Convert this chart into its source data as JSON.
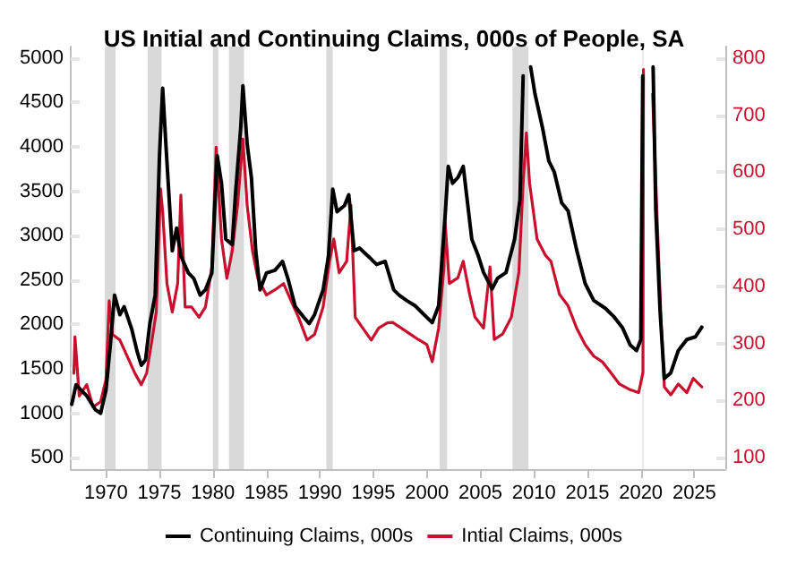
{
  "chart_data": {
    "type": "line",
    "title": "US Initial and Continuing Claims, 000s of People, SA",
    "xlim": [
      1966.7,
      2027.9
    ],
    "xticks": [
      1970,
      1975,
      1980,
      1985,
      1990,
      1995,
      2000,
      2005,
      2010,
      2015,
      2020,
      2025
    ],
    "ylim": [
      370,
      5130
    ],
    "yticks": [
      500,
      1000,
      1500,
      2000,
      2500,
      3000,
      3500,
      4000,
      4500,
      5000
    ],
    "y2lim": [
      80,
      820
    ],
    "y2ticks": [
      100,
      200,
      300,
      400,
      500,
      600,
      700,
      800
    ],
    "grid": false,
    "legend": "bottom",
    "marker": "none",
    "line_style": "solid",
    "bands": [
      {
        "axis": "x",
        "from": 1969.9,
        "to": 1970.9,
        "color": "#d9d9d9"
      },
      {
        "axis": "x",
        "from": 1973.9,
        "to": 1975.2,
        "color": "#d9d9d9"
      },
      {
        "axis": "x",
        "from": 1980.0,
        "to": 1980.5,
        "color": "#d9d9d9"
      },
      {
        "axis": "x",
        "from": 1981.5,
        "to": 1982.9,
        "color": "#d9d9d9"
      },
      {
        "axis": "x",
        "from": 1990.6,
        "to": 1991.2,
        "color": "#d9d9d9"
      },
      {
        "axis": "x",
        "from": 2001.2,
        "to": 2001.9,
        "color": "#d9d9d9"
      },
      {
        "axis": "x",
        "from": 2008.0,
        "to": 2009.5,
        "color": "#d9d9d9"
      },
      {
        "axis": "x",
        "from": 2020.1,
        "to": 2020.3,
        "color": "#ececec"
      }
    ],
    "series": [
      {
        "name": "Continuing Claims, 000s",
        "color": "#000000",
        "x": [
          1966.8,
          1967.2,
          1968.2,
          1969.0,
          1969.5,
          1970.0,
          1970.4,
          1970.8,
          1971.3,
          1971.7,
          1972.4,
          1972.9,
          1973.3,
          1973.7,
          1974.1,
          1974.6,
          1975.0,
          1975.3,
          1975.6,
          1976.2,
          1976.6,
          1977.0,
          1977.7,
          1978.2,
          1978.8,
          1979.3,
          1979.9,
          1980.2,
          1980.4,
          1980.8,
          1981.2,
          1981.8,
          1982.1,
          1982.6,
          1982.8,
          1983.2,
          1983.6,
          1984.0,
          1984.4,
          1985.0,
          1985.8,
          1986.5,
          1987.0,
          1987.7,
          1988.5,
          1989.0,
          1989.5,
          1990.3,
          1990.8,
          1991.2,
          1991.6,
          1992.3,
          1992.7,
          1993.2,
          1993.7,
          1994.5,
          1995.3,
          1996.1,
          1996.9,
          1997.4,
          1998.1,
          1998.9,
          1999.7,
          2000.5,
          2001.1,
          2001.7,
          2002.0,
          2002.4,
          2002.9,
          2003.4,
          2003.7,
          2004.2,
          2004.8,
          2005.3,
          2006.1,
          2006.6,
          2007.4,
          2008.2,
          2008.7,
          2009.0,
          2009.35,
          2009.7,
          2010.1,
          2010.8,
          2011.4,
          2011.9,
          2012.6,
          2013.2,
          2014.0,
          2014.8,
          2015.6,
          2016.7,
          2017.5,
          2018.3,
          2019.0,
          2019.6,
          2020.0,
          2020.18,
          2020.6,
          2021.15,
          2021.4,
          2021.8,
          2022.2,
          2022.8,
          2023.5,
          2024.3,
          2025.1,
          2025.7
        ],
        "values": [
          1100,
          1320,
          1195,
          1040,
          1000,
          1260,
          1760,
          2330,
          2110,
          2200,
          1950,
          1700,
          1540,
          1600,
          2010,
          2330,
          3900,
          4660,
          4030,
          2830,
          3085,
          2770,
          2580,
          2520,
          2330,
          2390,
          2580,
          3400,
          3900,
          3590,
          2960,
          2900,
          3460,
          4220,
          4690,
          4030,
          3650,
          2830,
          2390,
          2580,
          2610,
          2710,
          2520,
          2200,
          2080,
          2010,
          2110,
          2390,
          2770,
          3525,
          3270,
          3340,
          3460,
          2830,
          2860,
          2770,
          2675,
          2710,
          2390,
          2330,
          2270,
          2210,
          2115,
          2020,
          2210,
          3215,
          3780,
          3590,
          3655,
          3780,
          3470,
          2960,
          2775,
          2585,
          2400,
          2520,
          2585,
          2960,
          3405,
          4800,
          null,
          4900,
          4600,
          4220,
          3840,
          3720,
          3370,
          3280,
          2840,
          2460,
          2270,
          2180,
          2085,
          1960,
          1770,
          1705,
          1830,
          4800,
          null,
          4900,
          3280,
          2150,
          1390,
          1455,
          1705,
          1830,
          1860,
          1970
        ]
      },
      {
        "name": "Intial Claims, 000s",
        "color": "#c8102e",
        "axis": "y2",
        "x": [
          1967.0,
          1967.1,
          1967.5,
          1968.2,
          1968.8,
          1969.5,
          1970.0,
          1970.3,
          1970.6,
          1971.3,
          1972.0,
          1972.7,
          1973.3,
          1973.8,
          1974.3,
          1974.7,
          1975.1,
          1975.3,
          1975.7,
          1976.2,
          1976.7,
          1977.0,
          1977.4,
          1978.0,
          1978.7,
          1979.3,
          1979.9,
          1980.3,
          1980.8,
          1981.3,
          1981.8,
          1982.3,
          1982.8,
          1983.2,
          1983.7,
          1984.2,
          1985.0,
          1985.8,
          1986.6,
          1987.3,
          1988.0,
          1988.8,
          1989.5,
          1990.3,
          1990.9,
          1991.3,
          1991.8,
          1992.5,
          1992.9,
          1993.3,
          1994.0,
          1994.8,
          1995.5,
          1996.3,
          1996.8,
          1997.6,
          1998.4,
          1999.2,
          2000.0,
          2000.5,
          2001.1,
          2001.6,
          2001.7,
          2002.1,
          2002.9,
          2003.4,
          2004.0,
          2004.5,
          2005.3,
          2005.9,
          2006.3,
          2007.1,
          2007.9,
          2008.6,
          2009.0,
          2009.3,
          2009.6,
          2010.3,
          2011.1,
          2011.6,
          2012.4,
          2013.2,
          2014.0,
          2014.8,
          2015.6,
          2016.4,
          2017.2,
          2018.0,
          2019.0,
          2019.8,
          2020.2,
          2020.25,
          2020.6,
          2020.9,
          2021.1,
          2021.5,
          2021.9,
          2022.2,
          2022.8,
          2023.5,
          2024.3,
          2024.9,
          2025.7
        ],
        "values": [
          248,
          312,
          208,
          228,
          189,
          198,
          237,
          375,
          316,
          306,
          277,
          248,
          228,
          248,
          306,
          355,
          571,
          531,
          405,
          355,
          405,
          560,
          364,
          364,
          346,
          364,
          433,
          644,
          483,
          414,
          462,
          542,
          658,
          542,
          462,
          414,
          385,
          394,
          405,
          375,
          346,
          306,
          316,
          364,
          444,
          483,
          424,
          444,
          542,
          346,
          327,
          306,
          327,
          336,
          337,
          327,
          317,
          307,
          298,
          268,
          327,
          434,
          513,
          405,
          415,
          444,
          386,
          346,
          327,
          434,
          307,
          317,
          346,
          425,
          581,
          669,
          581,
          483,
          454,
          444,
          386,
          366,
          327,
          298,
          278,
          268,
          249,
          229,
          219,
          214,
          249,
          780,
          null,
          null,
          737,
          532,
          337,
          224,
          210,
          229,
          214,
          239,
          224
        ]
      }
    ]
  }
}
